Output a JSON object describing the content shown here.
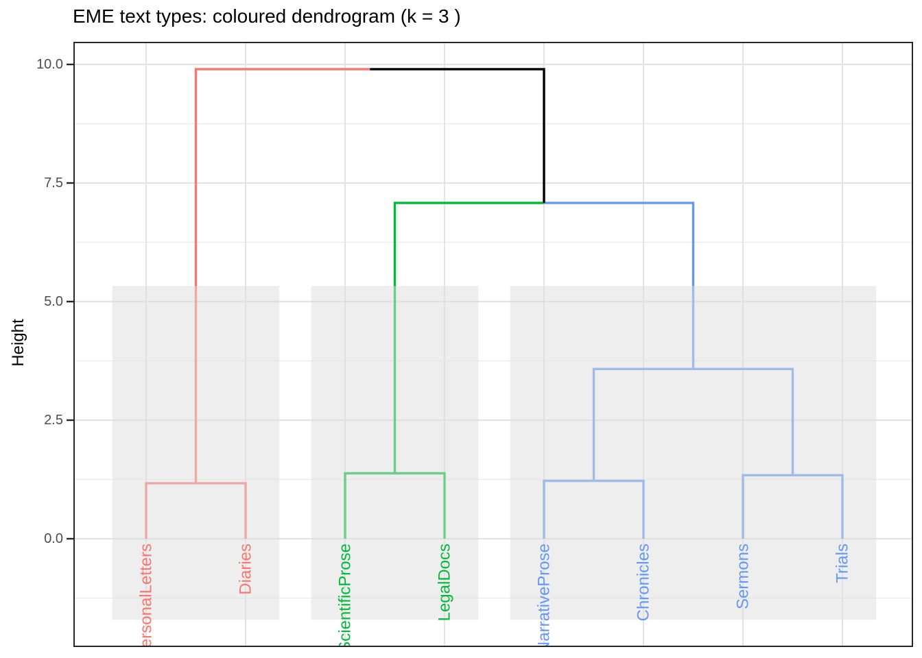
{
  "chart_data": {
    "type": "dendrogram",
    "title": "EME text types: coloured dendrogram (k = 3 )",
    "ylabel": "Height",
    "k": 3,
    "orientation": "vertical",
    "ylim": [
      -2.27,
      10.46
    ],
    "yticks": [
      0,
      2.5,
      5,
      7.5,
      10
    ],
    "ytick_labels": [
      "0.0",
      "2.5",
      "5.0",
      "7.5",
      "10.0"
    ],
    "y_minor_ticks": [
      -1.25,
      1.25,
      3.75,
      6.25,
      8.75
    ],
    "grid": true,
    "legend": "none",
    "leaves": [
      {
        "id": "L1",
        "label": "PersonalLetters",
        "cluster": 1
      },
      {
        "id": "L2",
        "label": "Diaries",
        "cluster": 1
      },
      {
        "id": "L3",
        "label": "ScientificProse",
        "cluster": 2
      },
      {
        "id": "L4",
        "label": "LegalDocs",
        "cluster": 2
      },
      {
        "id": "L5",
        "label": "NarrativeProse",
        "cluster": 3
      },
      {
        "id": "L6",
        "label": "Chronicles",
        "cluster": 3
      },
      {
        "id": "L7",
        "label": "Sermons",
        "cluster": 3
      },
      {
        "id": "L8",
        "label": "Trials",
        "cluster": 3
      }
    ],
    "merges": [
      {
        "id": "m1",
        "children": [
          "L1",
          "L2"
        ],
        "height": 1.17
      },
      {
        "id": "m2",
        "children": [
          "L3",
          "L4"
        ],
        "height": 1.38
      },
      {
        "id": "m3",
        "children": [
          "L5",
          "L6"
        ],
        "height": 1.22
      },
      {
        "id": "m4",
        "children": [
          "L7",
          "L8"
        ],
        "height": 1.34
      },
      {
        "id": "m5",
        "children": [
          "m3",
          "m4"
        ],
        "height": 3.58
      },
      {
        "id": "m6",
        "children": [
          "m2",
          "m5"
        ],
        "height": 7.08
      },
      {
        "id": "m7",
        "children": [
          "m1",
          "m6"
        ],
        "height": 9.9
      }
    ],
    "cluster_colors": [
      "#F8766D",
      "#00BA38",
      "#6499F2"
    ],
    "trunk_color": "#000000",
    "cluster_boxes": {
      "y_bottom": -1.71,
      "y_top": 5.33,
      "x_pad_leaf_units": 0.34
    },
    "style": {
      "tick_label_color": "#4D4D4D",
      "grid_major_color": "#E3E3E3",
      "grid_minor_color": "#ECECEC",
      "panel_border_color": "#262626",
      "box_fill": "rgba(222,222,222,0.5)"
    }
  }
}
